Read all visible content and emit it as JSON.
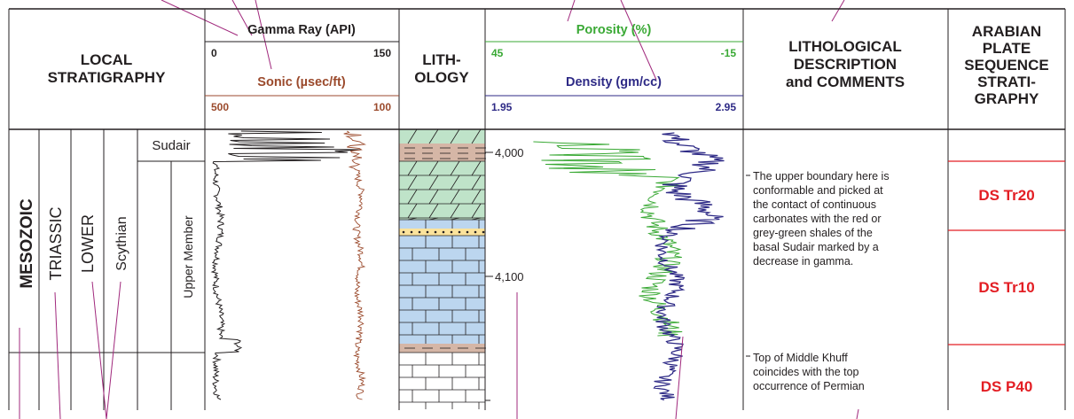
{
  "header": {
    "local_stratigraphy": [
      "LOCAL",
      "STRATIGRAPHY"
    ],
    "gamma_title": "Gamma Ray (API)",
    "gamma_min": "0",
    "gamma_max": "150",
    "sonic_title": "Sonic (µsec/ft)",
    "sonic_min": "500",
    "sonic_max": "100",
    "lithology": [
      "LITH-",
      "OLOGY"
    ],
    "porosity_title": "Porosity (%)",
    "porosity_min": "45",
    "porosity_max": "-15",
    "density_title": "Density (gm/cc)",
    "density_min": "1.95",
    "density_max": "2.95",
    "description": [
      "LITHOLOGICAL",
      "DESCRIPTION",
      "and COMMENTS"
    ],
    "sequence": [
      "ARABIAN",
      "PLATE",
      "SEQUENCE",
      "STRATI-",
      "GRAPHY"
    ]
  },
  "stratigraphy": {
    "era": "MESOZOIC",
    "period": "TRIASSIC",
    "epoch": "LOWER",
    "stage": "Scythian",
    "formation": "Sudair",
    "member": "Upper Member"
  },
  "depths": [
    "4,000",
    "4,100"
  ],
  "descriptions": [
    [
      "The upper boundary here is",
      "conformable and picked at",
      "the contact of continuous",
      "carbonates with the red or",
      "grey-green shales of the",
      "basal Sudair marked by a",
      "decrease in gamma."
    ],
    [
      "Top of Middle Khuff",
      "coincides with the top",
      "occurrence of Permian"
    ]
  ],
  "sequences": [
    "DS Tr20",
    "DS Tr10",
    "DS P40"
  ],
  "colors": {
    "gamma": "#231f20",
    "sonic": "#9b4a2c",
    "porosity": "#3aa935",
    "density": "#2e2a86",
    "sequence": "#e31e24",
    "limestone": "#bcd6ef",
    "dolomite": "#bfe3c9",
    "shale": "#d5b6a6",
    "sand": "#fbe39c",
    "annotation": "#a0287c"
  }
}
